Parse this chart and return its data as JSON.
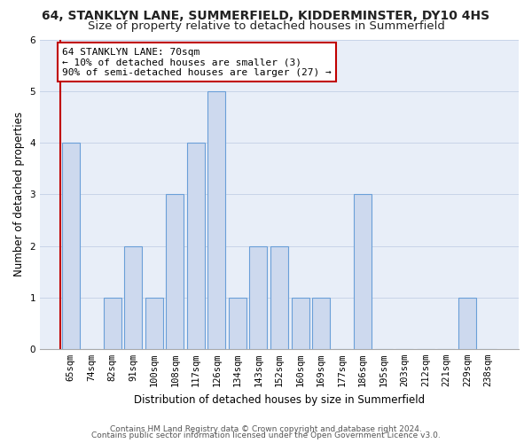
{
  "title1": "64, STANKLYN LANE, SUMMERFIELD, KIDDERMINSTER, DY10 4HS",
  "title2": "Size of property relative to detached houses in Summerfield",
  "xlabel": "Distribution of detached houses by size in Summerfield",
  "ylabel": "Number of detached properties",
  "categories": [
    "65sqm",
    "74sqm",
    "82sqm",
    "91sqm",
    "100sqm",
    "108sqm",
    "117sqm",
    "126sqm",
    "134sqm",
    "143sqm",
    "152sqm",
    "160sqm",
    "169sqm",
    "177sqm",
    "186sqm",
    "195sqm",
    "203sqm",
    "212sqm",
    "221sqm",
    "229sqm",
    "238sqm"
  ],
  "values": [
    4,
    0,
    1,
    2,
    1,
    3,
    4,
    5,
    1,
    2,
    2,
    1,
    1,
    0,
    3,
    0,
    0,
    0,
    0,
    1,
    0
  ],
  "bar_color": "#cdd9ee",
  "bar_edge_color": "#6a9fd8",
  "highlight_color": "#c00000",
  "vertical_line_x": -0.5,
  "annotation_text": "64 STANKLYN LANE: 70sqm\n← 10% of detached houses are smaller (3)\n90% of semi-detached houses are larger (27) →",
  "annotation_box_color": "white",
  "annotation_box_edge": "#c00000",
  "ylim": [
    0,
    6
  ],
  "yticks": [
    0,
    1,
    2,
    3,
    4,
    5,
    6
  ],
  "footer1": "Contains HM Land Registry data © Crown copyright and database right 2024.",
  "footer2": "Contains public sector information licensed under the Open Government Licence v3.0.",
  "title1_fontsize": 10,
  "title2_fontsize": 9.5,
  "xlabel_fontsize": 8.5,
  "ylabel_fontsize": 8.5,
  "tick_fontsize": 7.5,
  "annotation_fontsize": 8,
  "footer_fontsize": 6.5
}
